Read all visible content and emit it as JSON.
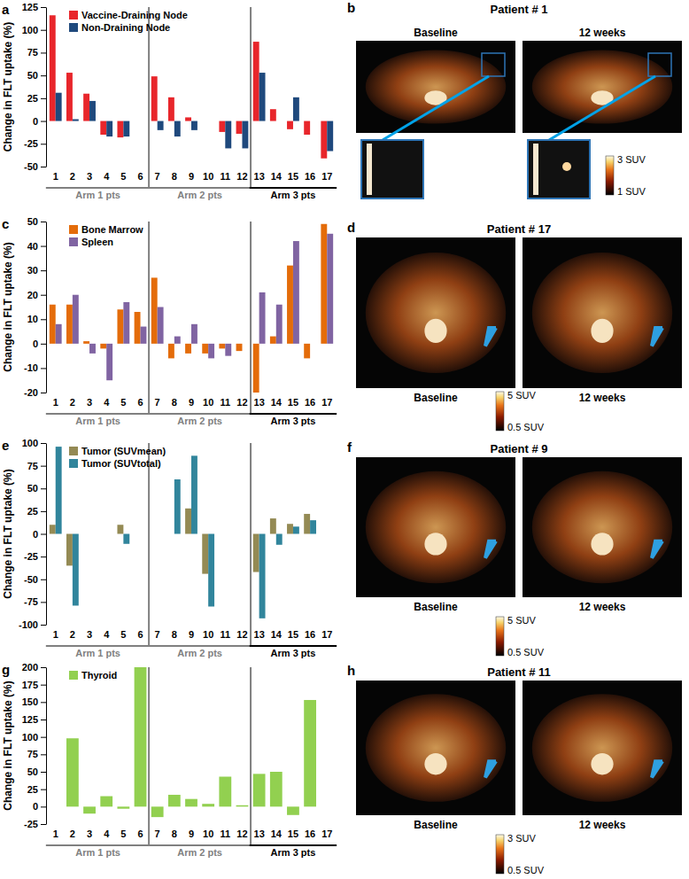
{
  "chart_data": [
    {
      "type": "bar",
      "title": "a",
      "y_label": "Change in FLT uptake (%)",
      "categories": [
        "1",
        "2",
        "3",
        "4",
        "5",
        "6",
        "7",
        "8",
        "9",
        "10",
        "11",
        "12",
        "13",
        "14",
        "15",
        "16",
        "17"
      ],
      "series": [
        {
          "name": "Vaccine-Draining Node",
          "color": "#e8262b",
          "values": [
            116,
            53,
            30,
            -15,
            -18,
            null,
            49,
            26,
            4,
            null,
            -12,
            -14,
            87,
            13,
            -9,
            -15,
            -41
          ]
        },
        {
          "name": "Non-Draining Node",
          "color": "#1f497d",
          "values": [
            31,
            2,
            22,
            -17,
            -17,
            null,
            -10,
            -17,
            -10,
            null,
            -30,
            -30,
            53,
            null,
            26,
            null,
            -33
          ]
        }
      ],
      "ylim": [
        -50,
        125
      ],
      "yticks": [
        -50,
        -25,
        0,
        25,
        50,
        75,
        100,
        125
      ],
      "legend": "upper left",
      "annotations": [
        {
          "text": "Arm 1 pts",
          "from": "1",
          "to": "6",
          "color": "#808080"
        },
        {
          "text": "Arm 2 pts",
          "from": "7",
          "to": "12",
          "color": "#808080"
        },
        {
          "text": "Arm 3 pts",
          "from": "13",
          "to": "17",
          "color": "#000000"
        }
      ]
    },
    {
      "type": "bar",
      "title": "c",
      "y_label": "Change in FLT uptake (%)",
      "categories": [
        "1",
        "2",
        "3",
        "4",
        "5",
        "6",
        "7",
        "8",
        "9",
        "10",
        "11",
        "12",
        "13",
        "14",
        "15",
        "16",
        "17"
      ],
      "series": [
        {
          "name": "Bone Marrow",
          "color": "#e46c0a",
          "values": [
            16,
            16,
            1,
            -2,
            14,
            13,
            27,
            -6,
            -4,
            -4,
            -2,
            -3,
            -20,
            3,
            32,
            -6,
            49
          ]
        },
        {
          "name": "Spleen",
          "color": "#8064a2",
          "values": [
            8,
            20,
            -4,
            -15,
            17,
            7,
            15,
            3,
            8,
            -6,
            -5,
            null,
            21,
            16,
            42,
            null,
            45
          ]
        }
      ],
      "ylim": [
        -20,
        50
      ],
      "yticks": [
        -20,
        -10,
        0,
        10,
        20,
        30,
        40,
        50
      ],
      "legend": "upper left",
      "annotations": [
        {
          "text": "Arm 1 pts",
          "from": "1",
          "to": "6",
          "color": "#808080"
        },
        {
          "text": "Arm 2 pts",
          "from": "7",
          "to": "12",
          "color": "#808080"
        },
        {
          "text": "Arm 3 pts",
          "from": "13",
          "to": "17",
          "color": "#000000"
        }
      ]
    },
    {
      "type": "bar",
      "title": "e",
      "y_label": "Change in FLT uptake (%)",
      "categories": [
        "1",
        "2",
        "3",
        "4",
        "5",
        "6",
        "7",
        "8",
        "9",
        "10",
        "11",
        "12",
        "13",
        "14",
        "15",
        "16",
        "17"
      ],
      "series": [
        {
          "name": "Tumor (SUVmean)",
          "color": "#948a54",
          "values": [
            10,
            -35,
            null,
            null,
            10,
            null,
            null,
            null,
            28,
            -44,
            null,
            null,
            -42,
            17,
            11,
            22,
            null
          ]
        },
        {
          "name": "Tumor (SUVtotal)",
          "color": "#31859c",
          "values": [
            96,
            -79,
            null,
            null,
            -11,
            null,
            null,
            60,
            86,
            -80,
            null,
            null,
            -93,
            -12,
            8,
            15,
            null
          ]
        }
      ],
      "ylim": [
        -100,
        100
      ],
      "yticks": [
        -100,
        -75,
        -50,
        -25,
        0,
        25,
        50,
        75,
        100
      ],
      "legend": "upper left",
      "annotations": [
        {
          "text": "Arm 1 pts",
          "from": "1",
          "to": "6",
          "color": "#808080"
        },
        {
          "text": "Arm 2 pts",
          "from": "7",
          "to": "12",
          "color": "#808080"
        },
        {
          "text": "Arm 3 pts",
          "from": "13",
          "to": "17",
          "color": "#000000"
        }
      ]
    },
    {
      "type": "bar",
      "title": "g",
      "y_label": "Change in FLT uptake (%)",
      "categories": [
        "1",
        "2",
        "3",
        "4",
        "5",
        "6",
        "7",
        "8",
        "9",
        "10",
        "11",
        "12",
        "13",
        "14",
        "15",
        "16",
        "17"
      ],
      "series": [
        {
          "name": "Thyroid",
          "color": "#92d050",
          "values": [
            null,
            98,
            -10,
            15,
            -3,
            200,
            -15,
            17,
            11,
            4,
            43,
            2,
            47,
            50,
            -12,
            153,
            null
          ]
        }
      ],
      "ylim": [
        -25,
        200
      ],
      "yticks": [
        -25,
        0,
        25,
        50,
        75,
        100,
        125,
        150,
        175,
        200
      ],
      "legend": "upper left",
      "annotations": [
        {
          "text": "Arm 1 pts",
          "from": "1",
          "to": "6",
          "color": "#808080"
        },
        {
          "text": "Arm 2 pts",
          "from": "7",
          "to": "12",
          "color": "#808080"
        },
        {
          "text": "Arm 3 pts",
          "from": "13",
          "to": "17",
          "color": "#000000"
        }
      ]
    }
  ],
  "image_panels": [
    {
      "title": "b",
      "patient": "Patient # 1",
      "labels": [
        "Baseline",
        "12 weeks"
      ],
      "colorbar": [
        "3 SUV",
        "1 SUV"
      ]
    },
    {
      "title": "d",
      "patient": "Patient # 17",
      "labels": [
        "Baseline",
        "12 weeks"
      ],
      "colorbar": [
        "5 SUV",
        "0.5 SUV"
      ]
    },
    {
      "title": "f",
      "patient": "Patient # 9",
      "labels": [
        "Baseline",
        "12 weeks"
      ],
      "colorbar": [
        "5 SUV",
        "0.5 SUV"
      ]
    },
    {
      "title": "h",
      "patient": "Patient # 11",
      "labels": [
        "Baseline",
        "12 weeks"
      ],
      "colorbar": [
        "3 SUV",
        "0.5 SUV"
      ]
    }
  ]
}
